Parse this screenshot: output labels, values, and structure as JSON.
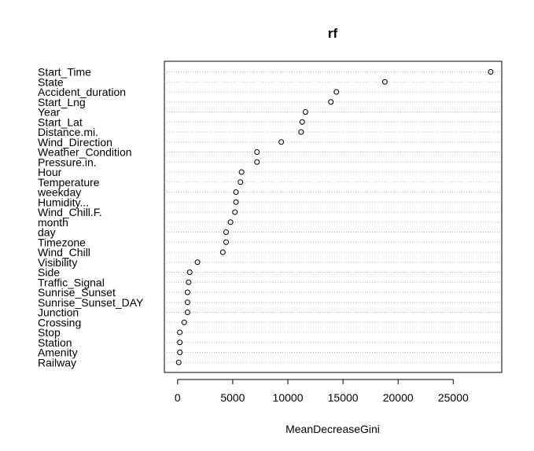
{
  "chart_data": {
    "type": "scatter",
    "title": "rf",
    "xlabel": "MeanDecreaseGini",
    "ylabel": "",
    "xlim": [
      -1200,
      29400
    ],
    "xticks": [
      0,
      5000,
      10000,
      15000,
      20000,
      25000
    ],
    "xtick_labels": [
      "0",
      "5000",
      "10000",
      "15000",
      "20000",
      "25000"
    ],
    "grid": "dotted horizontal guide lines per variable",
    "marker": "open circle",
    "categories": [
      "Start_Time",
      "State",
      "Accident_duration",
      "Start_Lng",
      "Year",
      "Start_Lat",
      "Distance.mi.",
      "Wind_Direction",
      "Weather_Condition",
      "Pressure.in.",
      "Hour",
      "Temperature",
      "weekday",
      "Humidity...",
      "Wind_Chill.F.",
      "month",
      "day",
      "Timezone",
      "Wind_Chill",
      "Visibility",
      "Side",
      "Traffic_Signal",
      "Sunrise_Sunset",
      "Sunrise_Sunset_DAY",
      "Junction",
      "Crossing",
      "Stop",
      "Station",
      "Amenity",
      "Railway"
    ],
    "values": [
      28400,
      18800,
      14400,
      13900,
      11600,
      11300,
      11200,
      9400,
      7200,
      7200,
      5800,
      5700,
      5300,
      5300,
      5200,
      4800,
      4400,
      4400,
      4100,
      1800,
      1100,
      1000,
      900,
      900,
      900,
      600,
      200,
      200,
      200,
      100
    ]
  }
}
